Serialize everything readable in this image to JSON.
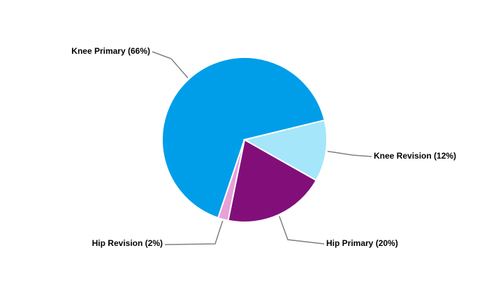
{
  "chart_data": {
    "type": "pie",
    "values": [
      66,
      12,
      20,
      2
    ],
    "value_labels": [
      "Knee Primary (66%)",
      "Knee Revision (12%)",
      "Hip Primary (20%)",
      "Hip Revision (2%)"
    ],
    "colors": [
      "#009ee9",
      "#a5e6fb",
      "#820f79",
      "#e8a0d8"
    ]
  }
}
